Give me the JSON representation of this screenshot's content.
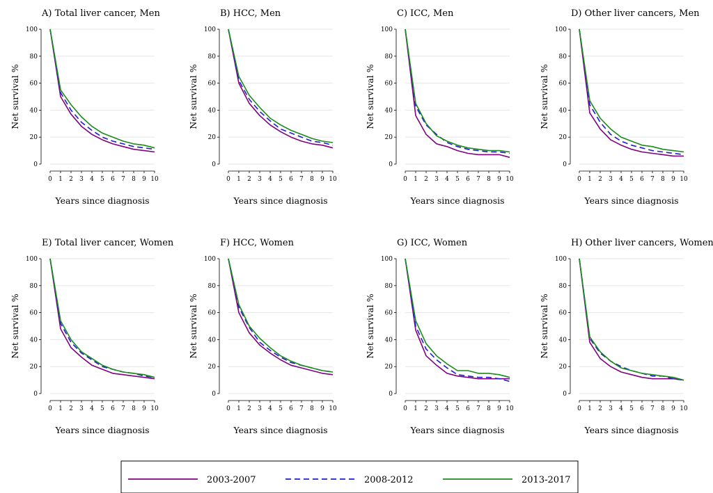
{
  "figure": {
    "legend": [
      {
        "label": "2003-2007",
        "color": "#800080",
        "dash": "solid"
      },
      {
        "label": "2008-2012",
        "color": "#1c1cd4",
        "dash": "dashed"
      },
      {
        "label": "2013-2017",
        "color": "#1a8a1a",
        "dash": "solid"
      }
    ]
  },
  "chart_data": [
    {
      "type": "line",
      "title": "A) Total liver cancer, Men",
      "xlabel": "Years since diagnosis",
      "ylabel": "Net survival %",
      "x": [
        0,
        1,
        2,
        3,
        4,
        5,
        6,
        7,
        8,
        9,
        10
      ],
      "xticks": [
        "0",
        "1",
        "2",
        "3",
        "4",
        "5",
        "6",
        "7",
        "8",
        "9",
        "10"
      ],
      "yticks": [
        "0",
        "20",
        "40",
        "60",
        "80",
        "100"
      ],
      "ylim": [
        0,
        100
      ],
      "grid": true,
      "series": [
        {
          "name": "2003-2007",
          "values": [
            100,
            50,
            37,
            28,
            22,
            18,
            15,
            13,
            11,
            10,
            9
          ]
        },
        {
          "name": "2008-2012",
          "values": [
            100,
            53,
            40,
            31,
            25,
            20,
            17,
            15,
            13,
            12,
            11
          ]
        },
        {
          "name": "2013-2017",
          "values": [
            100,
            55,
            44,
            35,
            28,
            23,
            20,
            17,
            15,
            14,
            12
          ]
        }
      ]
    },
    {
      "type": "line",
      "title": "B) HCC, Men",
      "xlabel": "Years since diagnosis",
      "ylabel": "Net survival %",
      "x": [
        0,
        1,
        2,
        3,
        4,
        5,
        6,
        7,
        8,
        9,
        10
      ],
      "xticks": [
        "0",
        "1",
        "2",
        "3",
        "4",
        "5",
        "6",
        "7",
        "8",
        "9",
        "10"
      ],
      "yticks": [
        "0",
        "20",
        "40",
        "60",
        "80",
        "100"
      ],
      "ylim": [
        0,
        100
      ],
      "grid": true,
      "series": [
        {
          "name": "2003-2007",
          "values": [
            100,
            60,
            45,
            36,
            29,
            24,
            20,
            17,
            15,
            14,
            12
          ]
        },
        {
          "name": "2008-2012",
          "values": [
            100,
            62,
            48,
            39,
            32,
            26,
            23,
            20,
            17,
            16,
            14
          ]
        },
        {
          "name": "2013-2017",
          "values": [
            100,
            65,
            51,
            42,
            34,
            29,
            25,
            22,
            19,
            17,
            16
          ]
        }
      ]
    },
    {
      "type": "line",
      "title": "C) ICC, Men",
      "xlabel": "Years since diagnosis",
      "ylabel": "Net survival %",
      "x": [
        0,
        1,
        2,
        3,
        4,
        5,
        6,
        7,
        8,
        9,
        10
      ],
      "xticks": [
        "0",
        "1",
        "2",
        "3",
        "4",
        "5",
        "6",
        "7",
        "8",
        "9",
        "10"
      ],
      "yticks": [
        "0",
        "20",
        "40",
        "60",
        "80",
        "100"
      ],
      "ylim": [
        0,
        100
      ],
      "grid": true,
      "series": [
        {
          "name": "2003-2007",
          "values": [
            100,
            36,
            22,
            15,
            13,
            10,
            8,
            7,
            7,
            7,
            5
          ]
        },
        {
          "name": "2008-2012",
          "values": [
            100,
            43,
            29,
            22,
            16,
            13,
            11,
            10,
            9,
            9,
            8
          ]
        },
        {
          "name": "2013-2017",
          "values": [
            100,
            45,
            30,
            21,
            17,
            14,
            12,
            11,
            10,
            10,
            9
          ]
        }
      ]
    },
    {
      "type": "line",
      "title": "D) Other liver cancers, Men",
      "xlabel": "Years since diagnosis",
      "ylabel": "Net survival %",
      "x": [
        0,
        1,
        2,
        3,
        4,
        5,
        6,
        7,
        8,
        9,
        10
      ],
      "xticks": [
        "0",
        "1",
        "2",
        "3",
        "4",
        "5",
        "6",
        "7",
        "8",
        "9",
        "10"
      ],
      "yticks": [
        "0",
        "20",
        "40",
        "60",
        "80",
        "100"
      ],
      "ylim": [
        0,
        100
      ],
      "grid": true,
      "series": [
        {
          "name": "2003-2007",
          "values": [
            100,
            38,
            26,
            18,
            14,
            11,
            9,
            8,
            7,
            6,
            6
          ]
        },
        {
          "name": "2008-2012",
          "values": [
            100,
            44,
            31,
            22,
            17,
            14,
            12,
            10,
            9,
            8,
            7
          ]
        },
        {
          "name": "2013-2017",
          "values": [
            100,
            47,
            34,
            26,
            20,
            17,
            14,
            13,
            11,
            10,
            9
          ]
        }
      ]
    },
    {
      "type": "line",
      "title": "E) Total liver cancer, Women",
      "xlabel": "Years since diagnosis",
      "ylabel": "Net survival %",
      "x": [
        0,
        1,
        2,
        3,
        4,
        5,
        6,
        7,
        8,
        9,
        10
      ],
      "xticks": [
        "0",
        "1",
        "2",
        "3",
        "4",
        "5",
        "6",
        "7",
        "8",
        "9",
        "10"
      ],
      "yticks": [
        "0",
        "20",
        "40",
        "60",
        "80",
        "100"
      ],
      "ylim": [
        0,
        100
      ],
      "grid": true,
      "series": [
        {
          "name": "2003-2007",
          "values": [
            100,
            48,
            34,
            27,
            21,
            18,
            15,
            14,
            13,
            12,
            11
          ]
        },
        {
          "name": "2008-2012",
          "values": [
            100,
            52,
            38,
            30,
            25,
            20,
            18,
            16,
            15,
            13,
            12
          ]
        },
        {
          "name": "2013-2017",
          "values": [
            100,
            54,
            40,
            31,
            26,
            21,
            18,
            16,
            15,
            14,
            12
          ]
        }
      ]
    },
    {
      "type": "line",
      "title": "F) HCC, Women",
      "xlabel": "Years since diagnosis",
      "ylabel": "Net survival %",
      "x": [
        0,
        1,
        2,
        3,
        4,
        5,
        6,
        7,
        8,
        9,
        10
      ],
      "xticks": [
        "0",
        "1",
        "2",
        "3",
        "4",
        "5",
        "6",
        "7",
        "8",
        "9",
        "10"
      ],
      "yticks": [
        "0",
        "20",
        "40",
        "60",
        "80",
        "100"
      ],
      "ylim": [
        0,
        100
      ],
      "grid": true,
      "series": [
        {
          "name": "2003-2007",
          "values": [
            100,
            60,
            45,
            36,
            30,
            25,
            21,
            19,
            17,
            15,
            14
          ]
        },
        {
          "name": "2008-2012",
          "values": [
            100,
            64,
            49,
            38,
            32,
            27,
            23,
            21,
            19,
            17,
            16
          ]
        },
        {
          "name": "2013-2017",
          "values": [
            100,
            66,
            50,
            41,
            34,
            28,
            24,
            21,
            19,
            17,
            16
          ]
        }
      ]
    },
    {
      "type": "line",
      "title": "G) ICC, Women",
      "xlabel": "Years since diagnosis",
      "ylabel": "Net survival %",
      "x": [
        0,
        1,
        2,
        3,
        4,
        5,
        6,
        7,
        8,
        9,
        10
      ],
      "xticks": [
        "0",
        "1",
        "2",
        "3",
        "4",
        "5",
        "6",
        "7",
        "8",
        "9",
        "10"
      ],
      "yticks": [
        "0",
        "20",
        "40",
        "60",
        "80",
        "100"
      ],
      "ylim": [
        0,
        100
      ],
      "grid": true,
      "series": [
        {
          "name": "2003-2007",
          "values": [
            100,
            47,
            28,
            21,
            15,
            13,
            12,
            11,
            11,
            11,
            11
          ]
        },
        {
          "name": "2008-2012",
          "values": [
            100,
            50,
            33,
            25,
            19,
            14,
            13,
            12,
            12,
            11,
            9
          ]
        },
        {
          "name": "2013-2017",
          "values": [
            100,
            54,
            37,
            28,
            22,
            17,
            17,
            15,
            15,
            14,
            12
          ]
        }
      ]
    },
    {
      "type": "line",
      "title": "H) Other liver cancers, Women",
      "xlabel": "Years since diagnosis",
      "ylabel": "Net survival %",
      "x": [
        0,
        1,
        2,
        3,
        4,
        5,
        6,
        7,
        8,
        9,
        10
      ],
      "xticks": [
        "0",
        "1",
        "2",
        "3",
        "4",
        "5",
        "6",
        "7",
        "8",
        "9",
        "10"
      ],
      "yticks": [
        "0",
        "20",
        "40",
        "60",
        "80",
        "100"
      ],
      "ylim": [
        0,
        100
      ],
      "grid": true,
      "series": [
        {
          "name": "2003-2007",
          "values": [
            100,
            38,
            26,
            20,
            16,
            14,
            12,
            11,
            11,
            11,
            10
          ]
        },
        {
          "name": "2008-2012",
          "values": [
            100,
            41,
            30,
            24,
            20,
            17,
            15,
            13,
            13,
            11,
            10
          ]
        },
        {
          "name": "2013-2017",
          "values": [
            100,
            42,
            31,
            24,
            19,
            17,
            15,
            14,
            13,
            12,
            10
          ]
        }
      ]
    }
  ]
}
